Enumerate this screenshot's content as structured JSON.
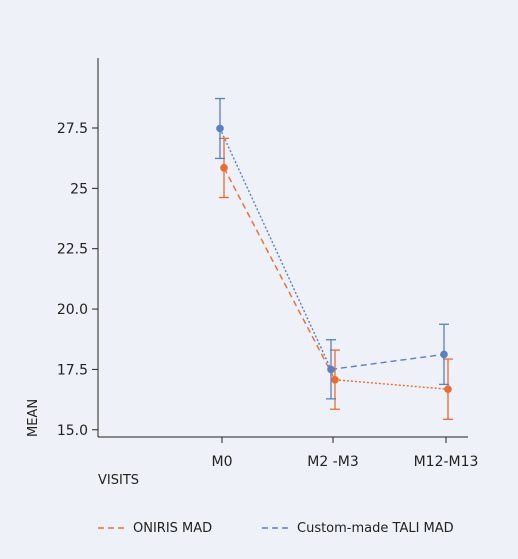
{
  "chart_data": {
    "type": "line",
    "xlabel": "VISITS",
    "ylabel": "MEAN",
    "categories": [
      "M0",
      "M2 -M3",
      "M12-M13"
    ],
    "y_ticks": [
      "15.0",
      "17.5",
      "20.0",
      "22.5",
      "25",
      "27.5"
    ],
    "y_tick_values": [
      15,
      17.5,
      20,
      22.5,
      25,
      27.5
    ],
    "ylim": [
      14.7,
      30.4
    ],
    "grid": false,
    "legend_position": "bottom",
    "series": [
      {
        "name": "ONIRIS MAD",
        "color": "#ea6d2e",
        "means": [
          25.85,
          17.07,
          16.68
        ],
        "lower": [
          24.62,
          15.85,
          15.43
        ],
        "upper": [
          27.07,
          18.3,
          17.93
        ],
        "line_style_first_segment": "dashed",
        "line_style_second_segment": "dotted"
      },
      {
        "name": "Custom-made TALI MAD",
        "color": "#5b7fc4",
        "means": [
          27.48,
          17.5,
          18.12
        ],
        "lower": [
          26.24,
          16.28,
          16.88
        ],
        "upper": [
          28.72,
          18.73,
          19.37
        ],
        "line_style_first_segment": "dotted",
        "line_style_second_segment": "dashed"
      }
    ]
  }
}
